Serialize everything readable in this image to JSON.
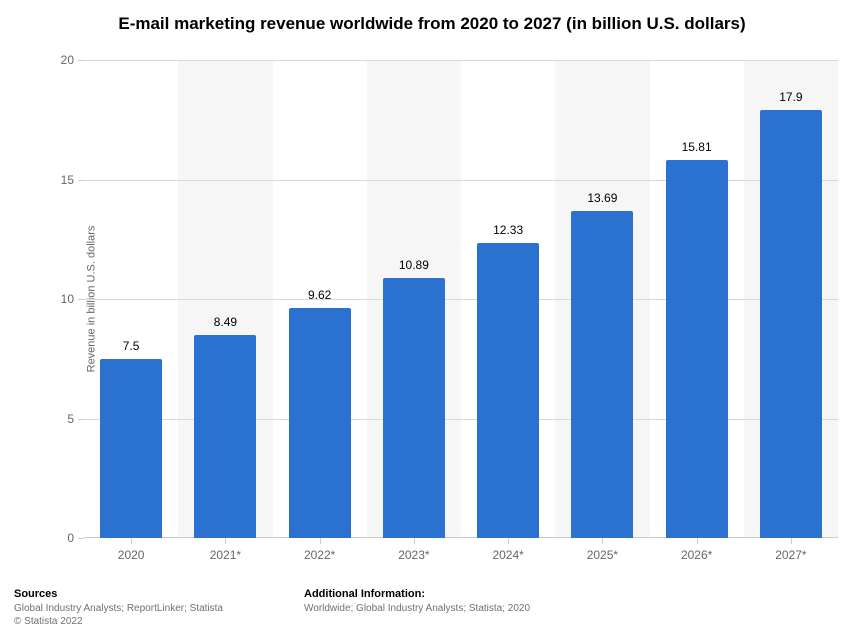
{
  "chart": {
    "type": "bar",
    "title": "E-mail marketing revenue worldwide from 2020 to 2027 (in billion U.S. dollars)",
    "title_fontsize": 17,
    "title_fontweight": "bold",
    "categories": [
      "2020",
      "2021*",
      "2022*",
      "2023*",
      "2024*",
      "2025*",
      "2026*",
      "2027*"
    ],
    "values": [
      7.5,
      8.49,
      9.62,
      10.89,
      12.33,
      13.69,
      15.81,
      17.9
    ],
    "value_labels": [
      "7.5",
      "8.49",
      "9.62",
      "10.89",
      "12.33",
      "13.69",
      "15.81",
      "17.9"
    ],
    "bar_color": "#2a71d0",
    "ylabel": "Revenue in billion U.S. dollars",
    "ylim": [
      0,
      20
    ],
    "yticks": [
      0,
      5,
      10,
      15,
      20
    ],
    "ytick_labels": [
      "0",
      "5",
      "10",
      "15",
      "20"
    ],
    "background_color": "#ffffff",
    "alt_band_color": "#f6f6f6",
    "grid_color": "#d9d9d9",
    "axis_label_color": "#666666",
    "value_label_color": "#000000",
    "bar_width_ratio": 0.66,
    "label_fontsize": 12,
    "tick_fontsize": 12,
    "ylabel_fontsize": 11
  },
  "footer": {
    "sources_heading": "Sources",
    "sources_line1": "Global Industry Analysts; ReportLinker; Statista",
    "sources_line2": "© Statista 2022",
    "info_heading": "Additional Information:",
    "info_line": "Worldwide; Global Industry Analysts; Statista; 2020"
  }
}
